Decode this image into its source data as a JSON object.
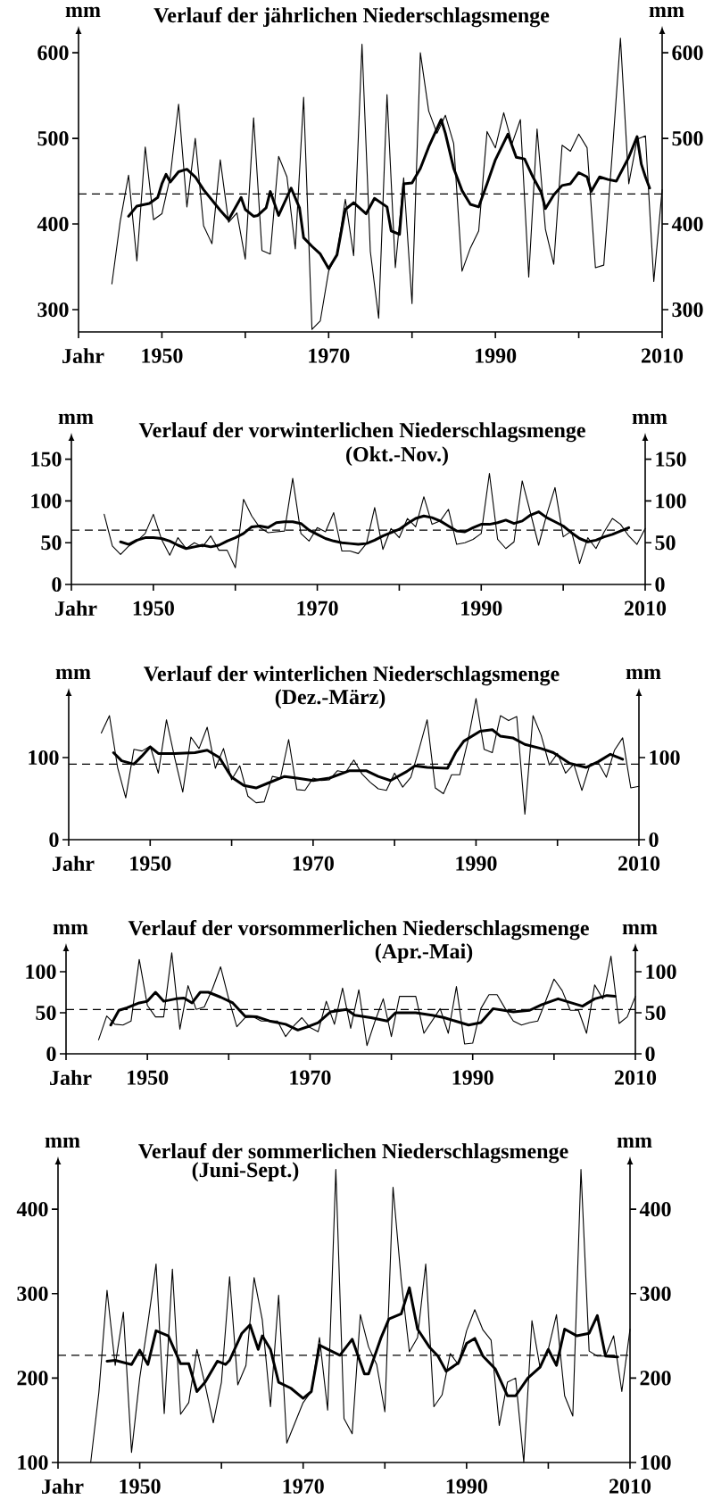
{
  "chart_data": [
    {
      "type": "line",
      "title": "Verlauf der jährlichen Niederschlagsmenge",
      "xlabel": "Jahr",
      "ylabel": "mm",
      "y2label": "mm",
      "x": [
        1944,
        1945,
        1946,
        1947,
        1948,
        1949,
        1950,
        1951,
        1952,
        1953,
        1954,
        1955,
        1956,
        1957,
        1958,
        1959,
        1960,
        1961,
        1962,
        1963,
        1964,
        1965,
        1966,
        1967,
        1968,
        1969,
        1970,
        1971,
        1972,
        1973,
        1974,
        1975,
        1976,
        1977,
        1978,
        1979,
        1980,
        1981,
        1982,
        1983,
        1984,
        1985,
        1986,
        1987,
        1988,
        1989,
        1990,
        1991,
        1992,
        1993,
        1994,
        1995,
        1996,
        1997,
        1998,
        1999,
        2000,
        2001,
        2002,
        2003,
        2004,
        2005,
        2006,
        2007,
        2008,
        2009,
        2010
      ],
      "series": [
        {
          "color": "#000000",
          "values": [
            330,
            403,
            457,
            357,
            490,
            405,
            412,
            455,
            540,
            420,
            500,
            398,
            377,
            475,
            402,
            413,
            359,
            524,
            369,
            365,
            479,
            455,
            371,
            548,
            277,
            287,
            345,
            365,
            429,
            363,
            610,
            368,
            290,
            551,
            349,
            454,
            307,
            600,
            532,
            506,
            527,
            494,
            345,
            372,
            392,
            508,
            489,
            530,
            494,
            522,
            338,
            511,
            394,
            353,
            492,
            485,
            505,
            489,
            349,
            352,
            480,
            617,
            447,
            499,
            503,
            333,
            440
          ]
        },
        {
          "color": "#000000",
          "x": [
            1946,
            1947,
            1948.5,
            1949.5,
            1950,
            1950.5,
            1951,
            1952,
            1953,
            1954,
            1955,
            1956,
            1957,
            1958,
            1959.5,
            1960,
            1961,
            1961.5,
            1962.5,
            1963,
            1964,
            1965.5,
            1966.5,
            1967,
            1968,
            1969,
            1970,
            1971,
            1972,
            1973,
            1974.5,
            1975.5,
            1977,
            1977.5,
            1978.5,
            1979,
            1980,
            1981,
            1982,
            1983.5,
            1984,
            1985,
            1986,
            1987,
            1988,
            1989,
            1990,
            1991.5,
            1992.5,
            1993.5,
            1994.5,
            1995.5,
            1996,
            1997,
            1998,
            1999,
            2000,
            2001,
            2001.5,
            2002.5,
            2003.5,
            2004.5,
            2006,
            2007,
            2007.5,
            2008,
            2008.5
          ],
          "values": [
            409,
            421,
            424,
            431,
            447,
            458,
            449,
            461,
            464,
            455,
            440,
            428,
            416,
            405,
            431,
            417,
            409,
            410,
            419,
            438,
            410,
            442,
            419,
            384,
            374,
            365,
            348,
            364,
            417,
            425,
            412,
            430,
            420,
            392,
            388,
            447,
            448,
            465,
            490,
            522,
            506,
            465,
            439,
            423,
            420,
            447,
            475,
            505,
            478,
            476,
            455,
            437,
            418,
            434,
            445,
            447,
            460,
            455,
            438,
            455,
            452,
            450,
            478,
            502,
            470,
            455,
            442
          ]
        }
      ],
      "ref_lines": [
        {
          "axis": "y",
          "value": 435,
          "line_style": "dashed"
        }
      ],
      "xlim": [
        1940,
        2010
      ],
      "xticks": [
        {
          "value": 1940,
          "label": null
        },
        1950,
        {
          "value": 1960,
          "label": null
        },
        1970,
        {
          "value": 1980,
          "label": null
        },
        1990,
        {
          "value": 2000,
          "label": null
        },
        2010
      ],
      "ylim": [
        274,
        622
      ],
      "yticks": [
        300,
        400,
        500,
        600
      ],
      "y2lim": [
        274,
        622
      ],
      "y2ticks": [
        300,
        400,
        500,
        600
      ]
    },
    {
      "type": "line",
      "title": "Verlauf der vorwinterlichen Niederschlagsmenge",
      "subtitle": "(Okt.-Nov.)",
      "xlabel": "Jahr",
      "ylabel": "mm",
      "y2label": "mm",
      "x": [
        1944,
        1945,
        1946,
        1947,
        1948,
        1949,
        1950,
        1951,
        1952,
        1953,
        1954,
        1955,
        1956,
        1957,
        1958,
        1959,
        1960,
        1961,
        1962,
        1963,
        1964,
        1965,
        1966,
        1967,
        1968,
        1969,
        1970,
        1971,
        1972,
        1973,
        1974,
        1975,
        1976,
        1977,
        1978,
        1979,
        1980,
        1981,
        1982,
        1983,
        1984,
        1985,
        1986,
        1987,
        1988,
        1989,
        1990,
        1991,
        1992,
        1993,
        1994,
        1995,
        1996,
        1997,
        1998,
        1999,
        2000,
        2001,
        2002,
        2003,
        2004,
        2005,
        2006,
        2007,
        2008,
        2009,
        2010
      ],
      "series": [
        {
          "color": "#000000",
          "values": [
            84,
            46,
            36,
            46,
            52,
            61,
            84,
            54,
            35,
            56,
            43,
            50,
            45,
            58,
            41,
            41,
            20,
            102,
            82,
            68,
            62,
            63,
            64,
            127,
            61,
            52,
            68,
            63,
            86,
            40,
            40,
            37,
            49,
            92,
            42,
            67,
            56,
            79,
            69,
            105,
            72,
            76,
            90,
            48,
            50,
            54,
            61,
            133,
            54,
            43,
            51,
            124,
            86,
            47,
            84,
            116,
            57,
            64,
            25,
            56,
            43,
            63,
            79,
            72,
            58,
            48,
            67
          ]
        },
        {
          "color": "#000000",
          "x": [
            1946,
            1947,
            1948,
            1949,
            1950,
            1951,
            1952,
            1953,
            1954,
            1955,
            1956,
            1957,
            1958,
            1959,
            1960,
            1961,
            1962,
            1963,
            1964,
            1965,
            1966,
            1967,
            1968,
            1969,
            1970,
            1971,
            1972,
            1973,
            1974,
            1975,
            1976,
            1977,
            1978,
            1979,
            1980,
            1981,
            1982,
            1983,
            1984,
            1985,
            1986,
            1987,
            1988,
            1989,
            1990,
            1991,
            1992,
            1993,
            1994,
            1995,
            1996,
            1997,
            1998,
            1999,
            2000,
            2001,
            2002,
            2003,
            2004,
            2005,
            2006,
            2007,
            2008
          ],
          "values": [
            51,
            48,
            53,
            56,
            56,
            55,
            52,
            47,
            43,
            45,
            47,
            45,
            47,
            52,
            56,
            61,
            69,
            70,
            68,
            74,
            75,
            75,
            73,
            65,
            60,
            55,
            52,
            50,
            49,
            48,
            49,
            53,
            58,
            62,
            66,
            73,
            79,
            82,
            80,
            76,
            70,
            64,
            63,
            68,
            72,
            72,
            74,
            77,
            73,
            76,
            83,
            87,
            80,
            75,
            70,
            62,
            55,
            51,
            53,
            57,
            60,
            64,
            68
          ]
        }
      ],
      "ref_lines": [
        {
          "axis": "y",
          "value": 65,
          "line_style": "dashed"
        }
      ],
      "xlim": [
        1940,
        2010
      ],
      "xticks": [
        {
          "value": 1940,
          "label": null
        },
        1950,
        {
          "value": 1960,
          "label": null
        },
        1970,
        {
          "value": 1980,
          "label": null
        },
        1990,
        {
          "value": 2000,
          "label": null
        },
        2010
      ],
      "ylim": [
        0,
        172
      ],
      "yticks": [
        0,
        50,
        100,
        150
      ],
      "y2lim": [
        0,
        172
      ],
      "y2ticks": [
        0,
        50,
        100,
        150
      ]
    },
    {
      "type": "line",
      "title": "Verlauf der winterlichen Niederschlagsmenge",
      "subtitle": "(Dez.-März)",
      "xlabel": "Jahr",
      "ylabel": "mm",
      "y2label": "mm",
      "x": [
        1944,
        1945,
        1946,
        1947,
        1948,
        1949,
        1950,
        1951,
        1952,
        1953,
        1954,
        1955,
        1956,
        1957,
        1958,
        1959,
        1960,
        1961,
        1962,
        1963,
        1964,
        1965,
        1966,
        1967,
        1968,
        1969,
        1970,
        1971,
        1972,
        1973,
        1974,
        1975,
        1976,
        1977,
        1978,
        1979,
        1980,
        1981,
        1982,
        1983,
        1984,
        1985,
        1986,
        1987,
        1988,
        1989,
        1990,
        1991,
        1992,
        1993,
        1994,
        1995,
        1996,
        1997,
        1998,
        1999,
        2000,
        2001,
        2002,
        2003,
        2004,
        2005,
        2006,
        2007,
        2008,
        2009,
        2010
      ],
      "series": [
        {
          "color": "#000000",
          "values": [
            130,
            151,
            88,
            51,
            110,
            108,
            114,
            81,
            146,
            100,
            58,
            125,
            111,
            137,
            87,
            111,
            73,
            90,
            53,
            45,
            46,
            77,
            75,
            122,
            61,
            60,
            75,
            72,
            73,
            84,
            82,
            97,
            80,
            70,
            62,
            60,
            81,
            64,
            76,
            110,
            146,
            63,
            56,
            79,
            79,
            120,
            172,
            110,
            106,
            151,
            145,
            150,
            31,
            151,
            127,
            91,
            105,
            81,
            92,
            60,
            92,
            94,
            76,
            109,
            124,
            63,
            65
          ]
        },
        {
          "color": "#000000",
          "x": [
            1945.5,
            1946.5,
            1948,
            1949,
            1950,
            1951,
            1953,
            1955.5,
            1957,
            1958.5,
            1960,
            1961.5,
            1963,
            1964.5,
            1966.5,
            1968,
            1970,
            1972,
            1974.5,
            1976.5,
            1978,
            1979.5,
            1981.5,
            1982.5,
            1984,
            1986.5,
            1987.5,
            1988.5,
            1990.5,
            1992,
            1993,
            1994.5,
            1996,
            1998,
            1999.5,
            2001.5,
            2003.5,
            2005,
            2006.5,
            2008
          ],
          "values": [
            106,
            96,
            92,
            102,
            113,
            105,
            105,
            106,
            109,
            100,
            76,
            66,
            63,
            69,
            77,
            75,
            72,
            75,
            84,
            84,
            77,
            72,
            83,
            90,
            88,
            87,
            106,
            120,
            132,
            134,
            126,
            124,
            116,
            111,
            106,
            93,
            88,
            95,
            104,
            98
          ]
        }
      ],
      "ref_lines": [
        {
          "axis": "y",
          "value": 92,
          "line_style": "dashed"
        }
      ],
      "xlim": [
        1940,
        2010
      ],
      "xticks": [
        {
          "value": 1940,
          "label": null
        },
        1950,
        {
          "value": 1960,
          "label": null
        },
        1970,
        {
          "value": 1980,
          "label": null
        },
        1990,
        {
          "value": 2000,
          "label": null
        },
        2010
      ],
      "ylim": [
        0,
        175
      ],
      "yticks": [
        0,
        100
      ],
      "y2lim": [
        0,
        175
      ],
      "y2ticks": [
        0,
        100
      ]
    },
    {
      "type": "line",
      "title": "Verlauf der vorsommerlichen Niederschlagsmenge",
      "subtitle": "(Apr.-Mai)",
      "xlabel": "Jahr",
      "ylabel": "mm",
      "y2label": "mm",
      "x": [
        1944,
        1945,
        1946,
        1947,
        1948,
        1949,
        1950,
        1951,
        1952,
        1953,
        1954,
        1955,
        1956,
        1957,
        1958,
        1959,
        1960,
        1961,
        1962,
        1963,
        1964,
        1965,
        1966,
        1967,
        1968,
        1969,
        1970,
        1971,
        1972,
        1973,
        1974,
        1975,
        1976,
        1977,
        1978,
        1979,
        1980,
        1981,
        1982,
        1983,
        1984,
        1985,
        1986,
        1987,
        1988,
        1989,
        1990,
        1991,
        1992,
        1993,
        1994,
        1995,
        1996,
        1997,
        1998,
        1999,
        2000,
        2001,
        2002,
        2003,
        2004,
        2005,
        2006,
        2007,
        2008,
        2009,
        2010
      ],
      "series": [
        {
          "color": "#000000",
          "values": [
            17,
            46,
            36,
            35,
            40,
            115,
            59,
            45,
            45,
            123,
            30,
            83,
            54,
            57,
            79,
            106,
            67,
            33,
            44,
            45,
            40,
            40,
            40,
            21,
            34,
            44,
            32,
            27,
            64,
            36,
            80,
            31,
            78,
            10,
            40,
            67,
            21,
            70,
            70,
            70,
            25,
            40,
            55,
            25,
            82,
            12,
            13,
            55,
            72,
            72,
            55,
            40,
            35,
            38,
            40,
            65,
            91,
            77,
            53,
            53,
            25,
            84,
            67,
            119,
            37,
            45,
            70
          ]
        },
        {
          "color": "#000000",
          "x": [
            1945.5,
            1946.5,
            1947.5,
            1949,
            1950,
            1951,
            1952,
            1953.5,
            1954.5,
            1955.5,
            1956.5,
            1957.5,
            1959,
            1960.5,
            1962,
            1963.5,
            1965,
            1967,
            1968.5,
            1970,
            1971,
            1972.5,
            1974.5,
            1975.5,
            1977.5,
            1979.5,
            1980.5,
            1983,
            1985,
            1986.5,
            1988.5,
            1989.5,
            1991,
            1992.5,
            1995,
            1997,
            1998.5,
            2000.5,
            2002.5,
            2003.5,
            2005,
            2006.5,
            2007.5
          ],
          "values": [
            35,
            53,
            56,
            62,
            64,
            75,
            64,
            67,
            68,
            62,
            75,
            75,
            69,
            62,
            46,
            45,
            40,
            36,
            29,
            34,
            38,
            51,
            54,
            47,
            44,
            40,
            50,
            50,
            47,
            44,
            38,
            35,
            38,
            55,
            51,
            53,
            60,
            67,
            61,
            58,
            67,
            71,
            70
          ]
        }
      ],
      "ref_lines": [
        {
          "axis": "y",
          "value": 54,
          "line_style": "dashed"
        }
      ],
      "xlim": [
        1940,
        2010
      ],
      "xticks": [
        {
          "value": 1940,
          "label": null
        },
        1950,
        {
          "value": 1960,
          "label": null
        },
        1970,
        {
          "value": 1980,
          "label": null
        },
        1990,
        {
          "value": 2000,
          "label": null
        },
        2010
      ],
      "ylim": [
        0,
        125
      ],
      "yticks": [
        0,
        50,
        100
      ],
      "y2lim": [
        0,
        125
      ],
      "y2ticks": [
        0,
        50,
        100
      ]
    },
    {
      "type": "line",
      "title": "Verlauf der sommerlichen Niederschlagsmenge",
      "subtitle": "(Juni-Sept.)",
      "xlabel": "Jahr",
      "ylabel": "mm",
      "y2label": "mm",
      "x": [
        1944,
        1945,
        1946,
        1947,
        1948,
        1949,
        1950,
        1951,
        1952,
        1953,
        1954,
        1955,
        1956,
        1957,
        1958,
        1959,
        1960,
        1961,
        1962,
        1963,
        1964,
        1965,
        1966,
        1967,
        1968,
        1969,
        1970,
        1971,
        1972,
        1973,
        1974,
        1975,
        1976,
        1977,
        1978,
        1979,
        1980,
        1981,
        1982,
        1983,
        1984,
        1985,
        1986,
        1987,
        1988,
        1989,
        1990,
        1991,
        1992,
        1993,
        1994,
        1995,
        1996,
        1997,
        1998,
        1999,
        2000,
        2001,
        2002,
        2003,
        2004,
        2005,
        2006,
        2007,
        2008,
        2009,
        2010
      ],
      "series": [
        {
          "color": "#000000",
          "values": [
            100,
            183,
            304,
            215,
            278,
            112,
            200,
            265,
            335,
            158,
            329,
            157,
            171,
            234,
            192,
            147,
            195,
            320,
            192,
            215,
            319,
            269,
            166,
            298,
            123,
            147,
            171,
            184,
            248,
            162,
            447,
            152,
            134,
            275,
            237,
            216,
            160,
            426,
            316,
            231,
            248,
            335,
            166,
            180,
            229,
            216,
            256,
            281,
            257,
            245,
            144,
            195,
            200,
            100,
            268,
            212,
            234,
            275,
            179,
            155,
            447,
            232,
            226,
            226,
            250,
            184,
            258
          ]
        },
        {
          "color": "#000000",
          "x": [
            1946,
            1947,
            1949,
            1950,
            1951,
            1952,
            1953.5,
            1955,
            1956,
            1957,
            1958,
            1959.5,
            1960.5,
            1961,
            1962.5,
            1963.5,
            1964.5,
            1965,
            1966,
            1967,
            1968.5,
            1970,
            1971,
            1972,
            1973,
            1974.5,
            1976,
            1977.5,
            1978,
            1979.5,
            1980.5,
            1982,
            1983,
            1984,
            1985.5,
            1986.5,
            1987.5,
            1989,
            1990,
            1991,
            1992,
            1993.5,
            1995,
            1996,
            1997.5,
            1999,
            2000,
            2001,
            2002,
            2003.5,
            2005,
            2006,
            2007,
            2008.5
          ],
          "values": [
            220,
            221,
            216,
            233,
            216,
            256,
            250,
            217,
            217,
            184,
            195,
            220,
            216,
            221,
            253,
            263,
            234,
            250,
            234,
            195,
            188,
            176,
            184,
            239,
            234,
            227,
            246,
            205,
            205,
            247,
            270,
            276,
            307,
            258,
            236,
            226,
            208,
            218,
            241,
            247,
            226,
            211,
            179,
            179,
            200,
            213,
            234,
            215,
            258,
            250,
            253,
            274,
            226,
            225
          ]
        }
      ],
      "ref_lines": [
        {
          "axis": "y",
          "value": 227,
          "line_style": "dashed"
        }
      ],
      "xlim": [
        1940,
        2010
      ],
      "xticks": [
        {
          "value": 1940,
          "label": null
        },
        1950,
        {
          "value": 1960,
          "label": null
        },
        1970,
        {
          "value": 1980,
          "label": null
        },
        1990,
        {
          "value": 2000,
          "label": null
        },
        2010
      ],
      "ylim": [
        100,
        453
      ],
      "yticks": [
        100,
        200,
        300,
        400
      ],
      "y2lim": [
        100,
        453
      ],
      "y2ticks": [
        100,
        200,
        300,
        400
      ]
    }
  ]
}
